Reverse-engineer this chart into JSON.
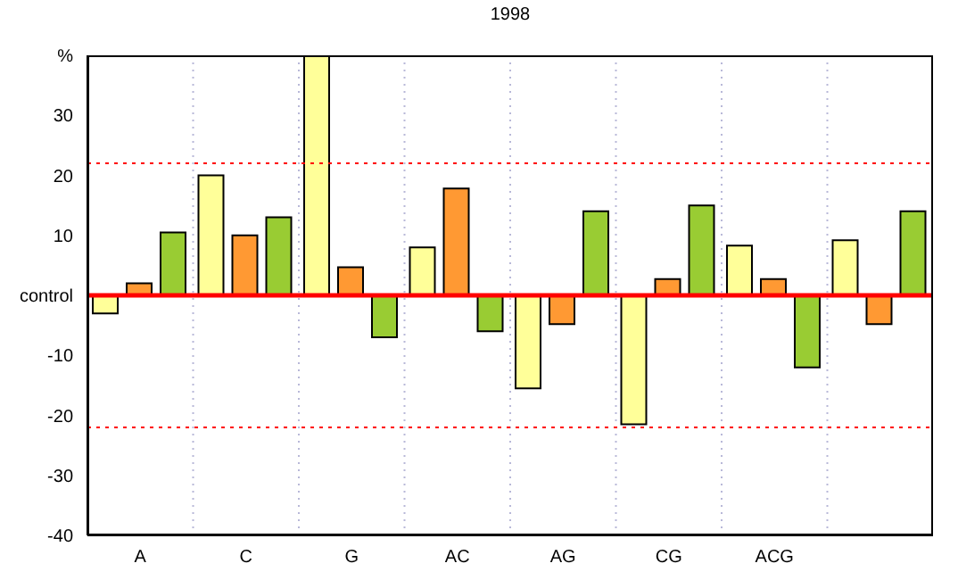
{
  "chart_data": {
    "type": "bar",
    "title": "1998",
    "categories": [
      "A",
      "C",
      "G",
      "AC",
      "AG",
      "CG",
      "ACG",
      null
    ],
    "series": [
      {
        "color": "#ffff99",
        "values": [
          -3,
          20,
          40,
          8,
          -15.5,
          -21.5,
          8.3,
          9.2
        ]
      },
      {
        "color": "#ff9933",
        "values": [
          2,
          10,
          4.7,
          17.8,
          -4.8,
          2.7,
          2.7,
          -4.8
        ]
      },
      {
        "color": "#99cc33",
        "values": [
          10.5,
          13,
          -7,
          -6,
          14,
          15,
          -12,
          14
        ]
      }
    ],
    "ylim": [
      -40,
      40
    ],
    "yticks": [
      -40,
      -30,
      -20,
      -10,
      {
        "value": 0,
        "label": "control"
      },
      10,
      20,
      30,
      {
        "value": 40,
        "label": "%"
      }
    ],
    "ref_lines": [
      {
        "axis": "y",
        "value": 0,
        "color": "#ff0000",
        "line_style": "solid"
      },
      {
        "axis": "y",
        "value": 22,
        "color": "#ff0000",
        "line_style": "dotted"
      },
      {
        "axis": "y",
        "value": -22,
        "color": "#ff0000",
        "line_style": "dotted"
      }
    ],
    "grid": "x"
  }
}
